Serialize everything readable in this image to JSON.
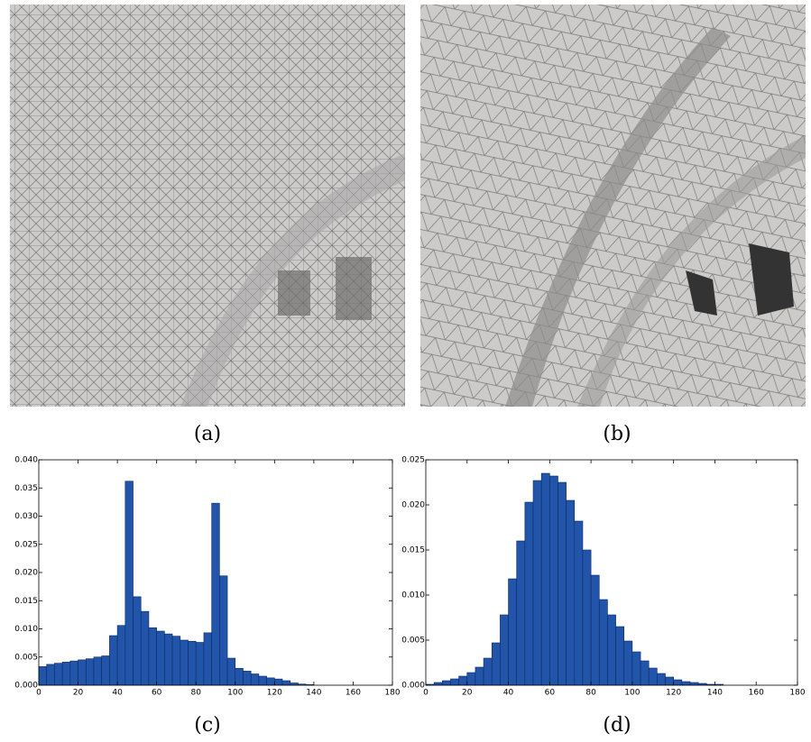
{
  "captions": [
    "(a)",
    "(b)",
    "(c)",
    "(d)"
  ],
  "chart_data": [
    {
      "type": "histogram",
      "color": "#2255aa",
      "bins": [
        0,
        4,
        8,
        12,
        16,
        20,
        24,
        28,
        32,
        36,
        40,
        44,
        48,
        52,
        56,
        60,
        64,
        68,
        72,
        76,
        80,
        84,
        88,
        92,
        96,
        100,
        104,
        108,
        112,
        116,
        120,
        124,
        128,
        132,
        136,
        140,
        144,
        148,
        152,
        156,
        160,
        164,
        168,
        172,
        176,
        180
      ],
      "values": [
        0.0033,
        0.0037,
        0.0039,
        0.0041,
        0.0043,
        0.0045,
        0.0047,
        0.005,
        0.0052,
        0.0088,
        0.0106,
        0.0362,
        0.0157,
        0.0131,
        0.0102,
        0.0096,
        0.0091,
        0.0087,
        0.008,
        0.0078,
        0.0076,
        0.0093,
        0.0323,
        0.0194,
        0.0048,
        0.003,
        0.0025,
        0.002,
        0.0016,
        0.0013,
        0.0011,
        0.0008,
        0.0004,
        0.0002,
        0.0001,
        0,
        0,
        0,
        0,
        0,
        0,
        0,
        0,
        0,
        0
      ],
      "xlim": [
        0,
        180
      ],
      "xticks": [
        0,
        20,
        40,
        60,
        80,
        100,
        120,
        140,
        160,
        180
      ],
      "ylim": [
        0,
        0.04
      ],
      "yticks": [
        {
          "value": 0,
          "label": "0.000"
        },
        {
          "value": 0.005,
          "label": "0.005"
        },
        {
          "value": 0.01,
          "label": "0.010"
        },
        {
          "value": 0.015,
          "label": "0.015"
        },
        {
          "value": 0.02,
          "label": "0.020"
        },
        {
          "value": 0.025,
          "label": "0.025"
        },
        {
          "value": 0.03,
          "label": "0.030"
        },
        {
          "value": 0.035,
          "label": "0.035"
        },
        {
          "value": 0.04,
          "label": "0.040"
        }
      ]
    },
    {
      "type": "histogram",
      "color": "#2255aa",
      "bins": [
        0,
        4,
        8,
        12,
        16,
        20,
        24,
        28,
        32,
        36,
        40,
        44,
        48,
        52,
        56,
        60,
        64,
        68,
        72,
        76,
        80,
        84,
        88,
        92,
        96,
        100,
        104,
        108,
        112,
        116,
        120,
        124,
        128,
        132,
        136,
        140,
        144,
        148,
        152,
        156,
        160,
        164,
        168,
        172,
        176,
        180
      ],
      "values": [
        0.0001,
        0.0003,
        0.0005,
        0.0007,
        0.001,
        0.0014,
        0.002,
        0.003,
        0.0047,
        0.0078,
        0.0118,
        0.016,
        0.0203,
        0.0227,
        0.0235,
        0.0232,
        0.0225,
        0.0205,
        0.0182,
        0.015,
        0.0122,
        0.0095,
        0.0078,
        0.0065,
        0.0049,
        0.0037,
        0.0027,
        0.0019,
        0.0013,
        0.0009,
        0.0006,
        0.0004,
        0.0003,
        0.0002,
        0.0001,
        0.0001,
        0,
        0,
        0,
        0,
        0,
        0,
        0,
        0,
        0
      ],
      "xlim": [
        0,
        180
      ],
      "xticks": [
        0,
        20,
        40,
        60,
        80,
        100,
        120,
        140,
        160,
        180
      ],
      "ylim": [
        0,
        0.025
      ],
      "yticks": [
        {
          "value": 0,
          "label": "0.000"
        },
        {
          "value": 0.005,
          "label": "0.005"
        },
        {
          "value": 0.01,
          "label": "0.010"
        },
        {
          "value": 0.015,
          "label": "0.015"
        },
        {
          "value": 0.02,
          "label": "0.020"
        },
        {
          "value": 0.025,
          "label": "0.025"
        }
      ]
    }
  ]
}
